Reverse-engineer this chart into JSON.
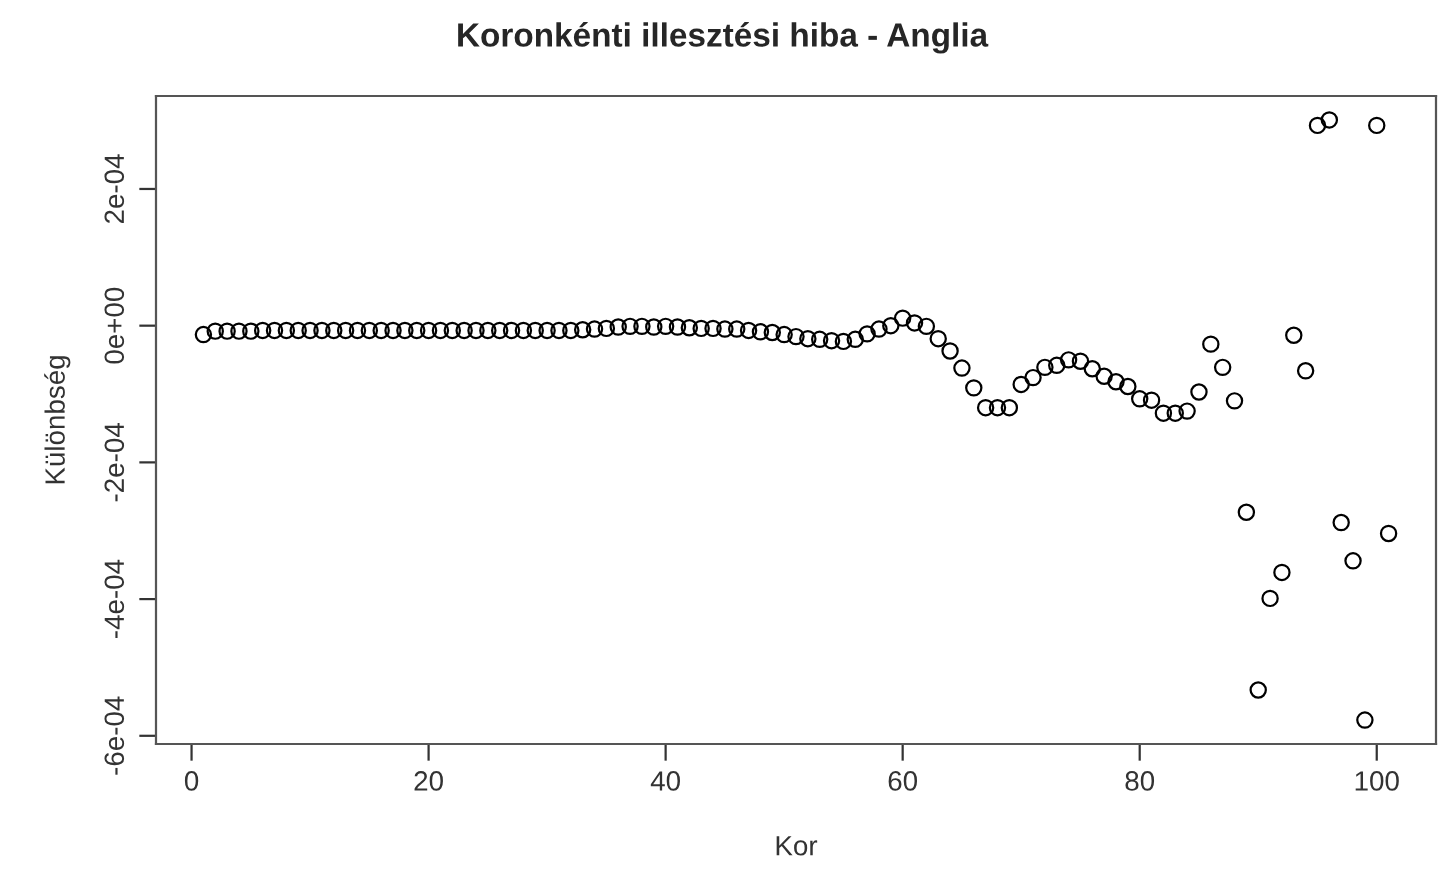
{
  "chart_data": {
    "type": "scatter",
    "title": "Koronkénti illesztési hiba - Anglia",
    "xlabel": "Kor",
    "ylabel": "Különbség",
    "x": [
      1,
      2,
      3,
      4,
      5,
      6,
      7,
      8,
      9,
      10,
      11,
      12,
      13,
      14,
      15,
      16,
      17,
      18,
      19,
      20,
      21,
      22,
      23,
      24,
      25,
      26,
      27,
      28,
      29,
      30,
      31,
      32,
      33,
      34,
      35,
      36,
      37,
      38,
      39,
      40,
      41,
      42,
      43,
      44,
      45,
      46,
      47,
      48,
      49,
      50,
      51,
      52,
      53,
      54,
      55,
      56,
      57,
      58,
      59,
      60,
      61,
      62,
      63,
      64,
      65,
      66,
      67,
      68,
      69,
      70,
      71,
      72,
      73,
      74,
      75,
      76,
      77,
      78,
      79,
      80,
      81,
      82,
      83,
      84,
      85,
      86,
      87,
      88,
      89,
      90,
      91,
      92,
      93,
      94,
      95,
      96,
      97,
      98,
      99,
      100,
      101
    ],
    "series": [
      {
        "color": "#000000",
        "values": [
          -1.3e-05,
          -8e-06,
          -8e-06,
          -8e-06,
          -8e-06,
          -7e-06,
          -7e-06,
          -7e-06,
          -7e-06,
          -7e-06,
          -7e-06,
          -7e-06,
          -7e-06,
          -7e-06,
          -7e-06,
          -7e-06,
          -7e-06,
          -7e-06,
          -7e-06,
          -7e-06,
          -7e-06,
          -7e-06,
          -7e-06,
          -7e-06,
          -7e-06,
          -7e-06,
          -7e-06,
          -7e-06,
          -7e-06,
          -7e-06,
          -7e-06,
          -7e-06,
          -6e-06,
          -5e-06,
          -4e-06,
          -2e-06,
          -1e-06,
          -1e-06,
          -2e-06,
          -1e-06,
          -2e-06,
          -3e-06,
          -4e-06,
          -4e-06,
          -5e-06,
          -5e-06,
          -7e-06,
          -9e-06,
          -1e-05,
          -1.3e-05,
          -1.6e-05,
          -1.9e-05,
          -2e-05,
          -2.2e-05,
          -2.3e-05,
          -2e-05,
          -1.2e-05,
          -5e-06,
          0.0,
          1.1e-05,
          4e-06,
          -1e-06,
          -1.9e-05,
          -3.7e-05,
          -6.2e-05,
          -9.1e-05,
          -0.00012,
          -0.00012,
          -0.00012,
          -8.6e-05,
          -7.6e-05,
          -6.1e-05,
          -5.8e-05,
          -5e-05,
          -5.2e-05,
          -6.3e-05,
          -7.4e-05,
          -8.2e-05,
          -8.9e-05,
          -0.000107,
          -0.000109,
          -0.000128,
          -0.000128,
          -0.000125,
          -9.7e-05,
          -2.7e-05,
          -6.1e-05,
          -0.00011,
          -0.000273,
          -0.000533,
          -0.000399,
          -0.000361,
          -1.4e-05,
          -6.6e-05,
          0.000293,
          0.000301,
          -0.000288,
          -0.000344,
          -0.000577,
          0.000293,
          -0.000304
        ]
      }
    ],
    "marker": "circle",
    "grid": false,
    "xlim": [
      -3,
      105
    ],
    "xticks": [
      0,
      20,
      40,
      60,
      80,
      100
    ],
    "ylim": [
      -0.000612,
      0.000336
    ],
    "yticks": [
      {
        "value": -0.0006,
        "label": "-6e-04"
      },
      {
        "value": -0.0004,
        "label": "-4e-04"
      },
      {
        "value": -0.0002,
        "label": "-2e-04"
      },
      {
        "value": 0,
        "label": "0e+00"
      },
      {
        "value": 0.0002,
        "label": "2e-04"
      }
    ]
  }
}
